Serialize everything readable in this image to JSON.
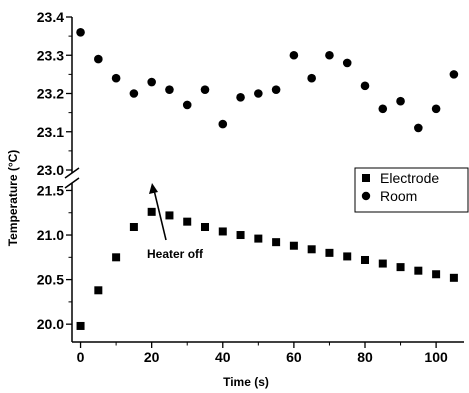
{
  "chart_data": {
    "type": "scatter",
    "xlabel": "Time (s)",
    "ylabel": "Temperature (°C)",
    "xlim": [
      -1,
      107
    ],
    "x_ticks": [
      "0",
      "20",
      "40",
      "60",
      "80",
      "100"
    ],
    "y_axis_broken": true,
    "y_upper_range": [
      23.0,
      23.4
    ],
    "y_upper_ticks": [
      "23.0",
      "23.1",
      "23.2",
      "23.3",
      "23.4"
    ],
    "y_lower_range": [
      19.8,
      21.55
    ],
    "y_lower_ticks": [
      "20.0",
      "20.5",
      "21.0",
      "21.5"
    ],
    "series": [
      {
        "name": "Electrode",
        "marker": "square",
        "points": [
          [
            0,
            19.98
          ],
          [
            5,
            20.38
          ],
          [
            10,
            20.75
          ],
          [
            15,
            21.09
          ],
          [
            20,
            21.26
          ],
          [
            25,
            21.22
          ],
          [
            30,
            21.15
          ],
          [
            35,
            21.09
          ],
          [
            40,
            21.04
          ],
          [
            45,
            21.0
          ],
          [
            50,
            20.96
          ],
          [
            55,
            20.92
          ],
          [
            60,
            20.88
          ],
          [
            65,
            20.84
          ],
          [
            70,
            20.8
          ],
          [
            75,
            20.76
          ],
          [
            80,
            20.72
          ],
          [
            85,
            20.68
          ],
          [
            90,
            20.64
          ],
          [
            95,
            20.6
          ],
          [
            100,
            20.56
          ],
          [
            105,
            20.52
          ]
        ]
      },
      {
        "name": "Room",
        "marker": "circle",
        "points": [
          [
            0,
            23.36
          ],
          [
            5,
            23.29
          ],
          [
            10,
            23.24
          ],
          [
            15,
            23.2
          ],
          [
            20,
            23.23
          ],
          [
            25,
            23.21
          ],
          [
            30,
            23.17
          ],
          [
            35,
            23.21
          ],
          [
            40,
            23.12
          ],
          [
            45,
            23.19
          ],
          [
            50,
            23.2
          ],
          [
            55,
            23.21
          ],
          [
            60,
            23.3
          ],
          [
            65,
            23.24
          ],
          [
            70,
            23.3
          ],
          [
            75,
            23.28
          ],
          [
            80,
            23.22
          ],
          [
            85,
            23.16
          ],
          [
            90,
            23.18
          ],
          [
            95,
            23.11
          ],
          [
            100,
            23.16
          ],
          [
            105,
            23.25
          ]
        ]
      }
    ],
    "legend_position": "right",
    "annotation": {
      "text": "Heater off",
      "x": 20,
      "y": 21.26
    }
  }
}
